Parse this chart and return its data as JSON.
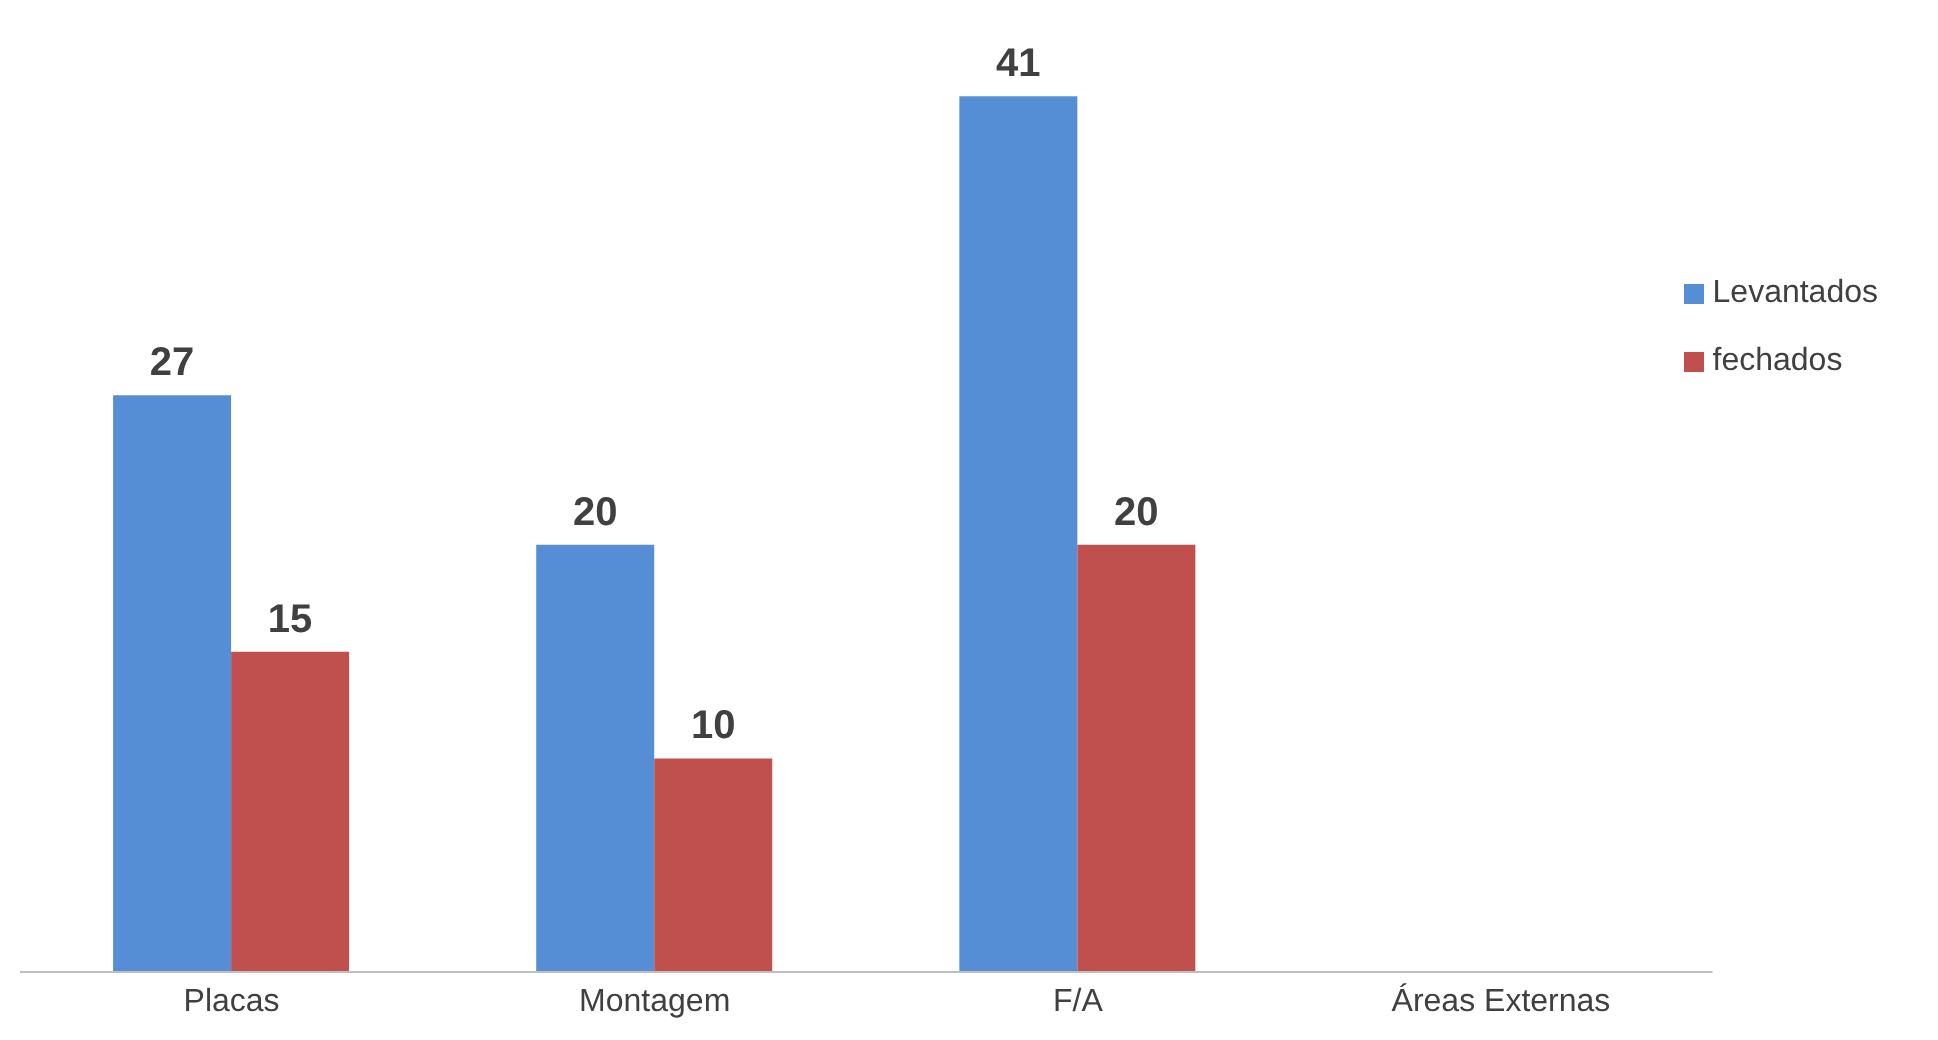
{
  "chart_data": {
    "type": "bar",
    "categories": [
      "Placas",
      "Montagem",
      "F/A",
      "Áreas Externas"
    ],
    "series": [
      {
        "name": "Levantados",
        "color": "#558ed5",
        "values": [
          27,
          20,
          41,
          null
        ]
      },
      {
        "name": "fechados",
        "color": "#c0504d",
        "values": [
          15,
          10,
          20,
          null
        ]
      }
    ],
    "data_labels": true,
    "legend": "right",
    "grid": false
  }
}
